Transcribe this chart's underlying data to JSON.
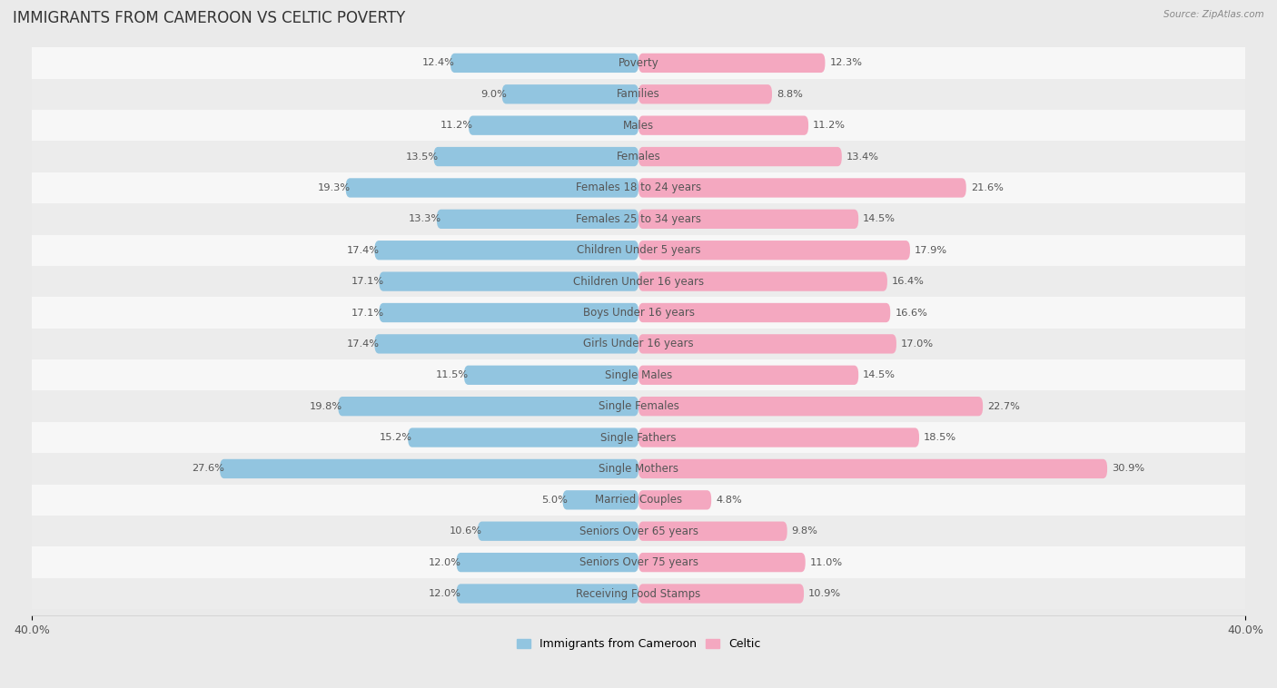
{
  "title": "IMMIGRANTS FROM CAMEROON VS CELTIC POVERTY",
  "source": "Source: ZipAtlas.com",
  "categories": [
    "Poverty",
    "Families",
    "Males",
    "Females",
    "Females 18 to 24 years",
    "Females 25 to 34 years",
    "Children Under 5 years",
    "Children Under 16 years",
    "Boys Under 16 years",
    "Girls Under 16 years",
    "Single Males",
    "Single Females",
    "Single Fathers",
    "Single Mothers",
    "Married Couples",
    "Seniors Over 65 years",
    "Seniors Over 75 years",
    "Receiving Food Stamps"
  ],
  "left_values": [
    12.4,
    9.0,
    11.2,
    13.5,
    19.3,
    13.3,
    17.4,
    17.1,
    17.1,
    17.4,
    11.5,
    19.8,
    15.2,
    27.6,
    5.0,
    10.6,
    12.0,
    12.0
  ],
  "right_values": [
    12.3,
    8.8,
    11.2,
    13.4,
    21.6,
    14.5,
    17.9,
    16.4,
    16.6,
    17.0,
    14.5,
    22.7,
    18.5,
    30.9,
    4.8,
    9.8,
    11.0,
    10.9
  ],
  "left_color": "#92C5E0",
  "right_color": "#F4A8C0",
  "background_color": "#eaeaea",
  "row_bg_color": "#f7f7f7",
  "row_alt_color": "#ececec",
  "axis_max": 40.0,
  "legend_left": "Immigrants from Cameroon",
  "legend_right": "Celtic",
  "bar_height": 0.62,
  "title_fontsize": 12,
  "label_fontsize": 8.5,
  "value_fontsize": 8.2
}
